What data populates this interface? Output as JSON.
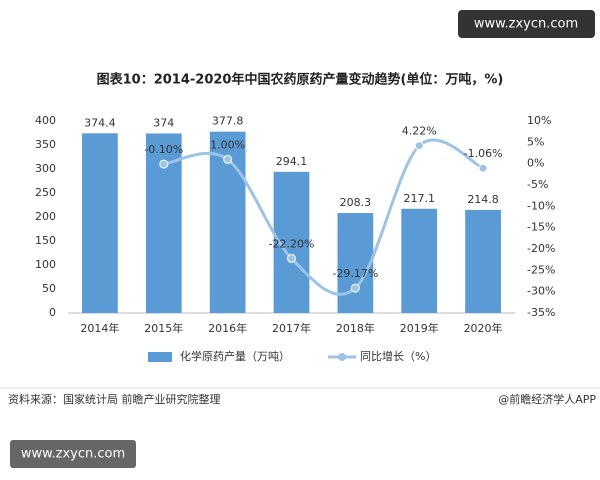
{
  "watermarks": [
    "www.zxycn.com",
    "www.zxycn.com"
  ],
  "chart_data": {
    "type": "bar",
    "title": "图表10：2014-2020年中国农药原药产量变动趋势(单位：万吨，%)",
    "categories": [
      "2014年",
      "2015年",
      "2016年",
      "2017年",
      "2018年",
      "2019年",
      "2020年"
    ],
    "series": [
      {
        "name": "化学原药产量（万吨）",
        "type": "bar",
        "color": "#5b9bd5",
        "values": [
          374.4,
          374,
          377.8,
          294.1,
          208.3,
          217.1,
          214.8
        ]
      },
      {
        "name": "同比增长（%）",
        "type": "line",
        "axis": "y2",
        "color": "#9dc3e6",
        "values": [
          null,
          -0.1,
          1.0,
          -22.2,
          -29.17,
          4.22,
          -1.06
        ],
        "value_labels": [
          null,
          "-0.10%",
          "1.00%",
          "-22.20%",
          "-29.17%",
          "4.22%",
          "-1.06%"
        ]
      }
    ],
    "ylim": [
      0,
      400
    ],
    "yticks": [
      0,
      50,
      100,
      150,
      200,
      250,
      300,
      350,
      400
    ],
    "y2lim": [
      -35,
      10
    ],
    "y2ticks": [
      {
        "value": 10,
        "label": "10%"
      },
      {
        "value": 5,
        "label": "5%"
      },
      {
        "value": 0,
        "label": "0%"
      },
      {
        "value": -5,
        "label": "-5%"
      },
      {
        "value": -10,
        "label": "-10%"
      },
      {
        "value": -15,
        "label": "-15%"
      },
      {
        "value": -20,
        "label": "-20%"
      },
      {
        "value": -25,
        "label": "-25%"
      },
      {
        "value": -30,
        "label": "-30%"
      },
      {
        "value": -35,
        "label": "-35%"
      }
    ],
    "legend": "bottom",
    "source": "资料来源：国家统计局 前瞻产业研究院整理",
    "credit": "@前瞻经济学人APP"
  }
}
